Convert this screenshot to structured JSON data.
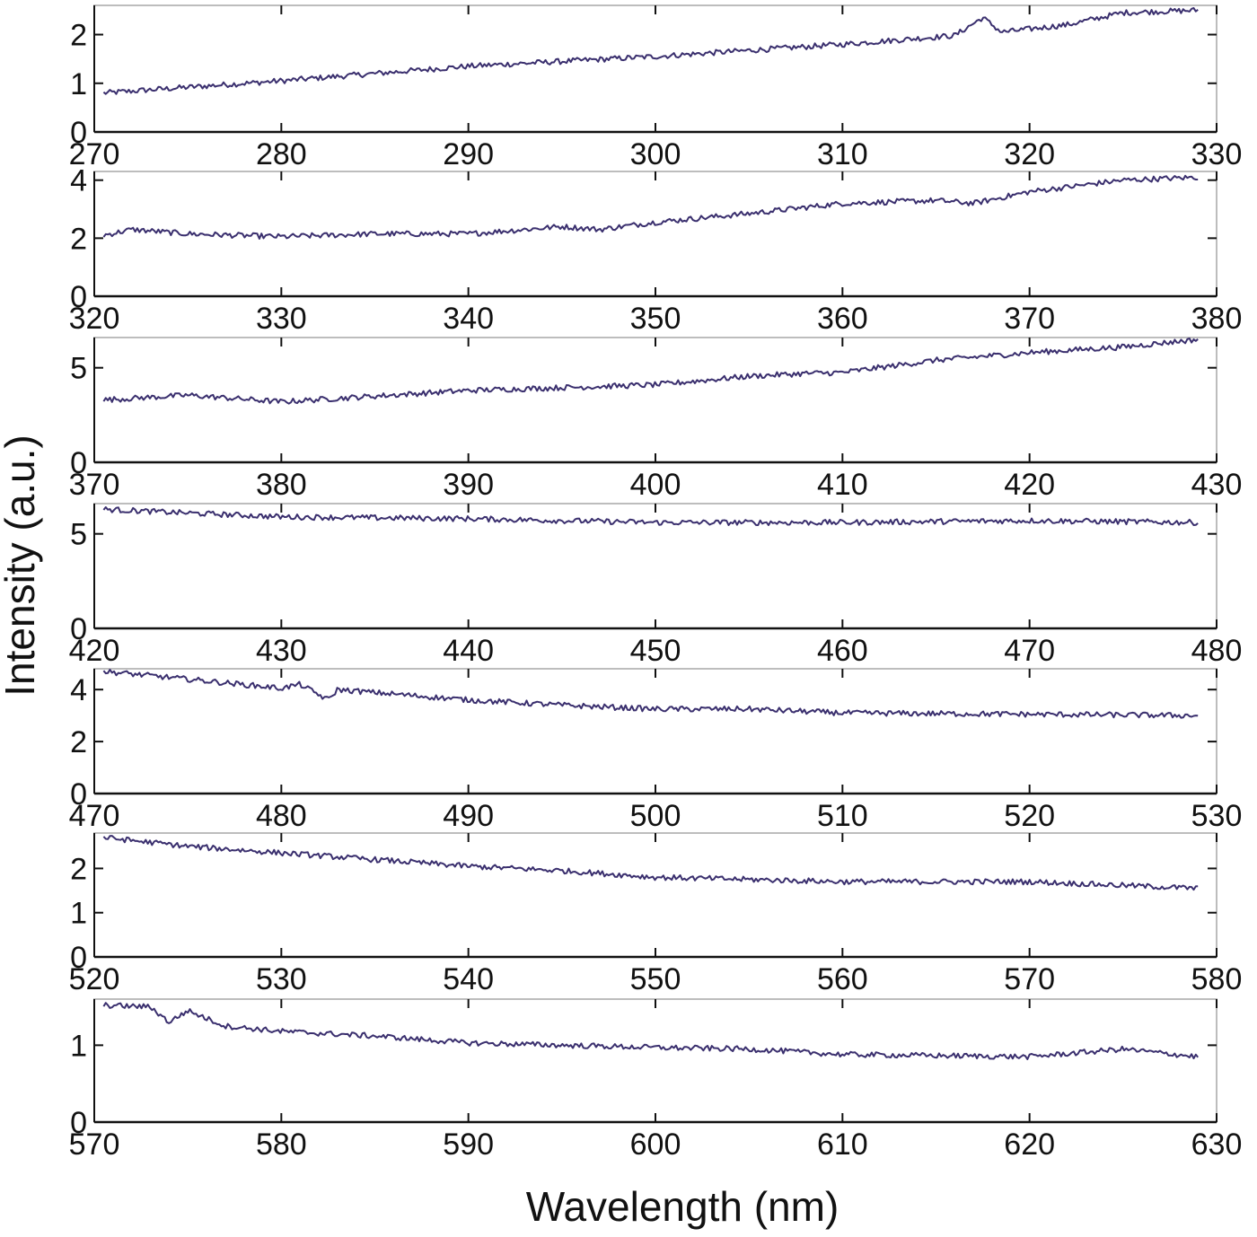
{
  "chart_data": {
    "type": "line",
    "xlabel": "Wavelength (nm)",
    "ylabel": "Intensity (a.u.)",
    "line_color": "#3a2f6e",
    "grid": false,
    "panels": [
      {
        "x_range": [
          270,
          330
        ],
        "x_ticks": [
          270,
          280,
          290,
          300,
          310,
          320,
          330
        ],
        "y_range": [
          0,
          2.6
        ],
        "y_ticks": [
          0,
          1,
          2
        ],
        "x_start": 270.5,
        "x_end": 329,
        "series": [
          {
            "x": 270.5,
            "y": 0.8
          },
          {
            "x": 280,
            "y": 1.05
          },
          {
            "x": 290,
            "y": 1.35
          },
          {
            "x": 300,
            "y": 1.55
          },
          {
            "x": 310,
            "y": 1.8
          },
          {
            "x": 316,
            "y": 1.98
          },
          {
            "x": 317.5,
            "y": 2.35
          },
          {
            "x": 318.5,
            "y": 2.05
          },
          {
            "x": 322,
            "y": 2.2
          },
          {
            "x": 325,
            "y": 2.45
          },
          {
            "x": 329,
            "y": 2.5
          }
        ]
      },
      {
        "x_range": [
          320,
          380
        ],
        "x_ticks": [
          320,
          330,
          340,
          350,
          360,
          370,
          380
        ],
        "y_range": [
          0,
          4.3
        ],
        "y_ticks": [
          0,
          2,
          4
        ],
        "x_start": 320.5,
        "x_end": 379,
        "series": [
          {
            "x": 320.5,
            "y": 2.1
          },
          {
            "x": 322,
            "y": 2.3
          },
          {
            "x": 325,
            "y": 2.15
          },
          {
            "x": 330,
            "y": 2.05
          },
          {
            "x": 335,
            "y": 2.15
          },
          {
            "x": 340,
            "y": 2.15
          },
          {
            "x": 345,
            "y": 2.4
          },
          {
            "x": 347,
            "y": 2.3
          },
          {
            "x": 350,
            "y": 2.55
          },
          {
            "x": 355,
            "y": 2.85
          },
          {
            "x": 360,
            "y": 3.2
          },
          {
            "x": 365,
            "y": 3.3
          },
          {
            "x": 367,
            "y": 3.2
          },
          {
            "x": 370,
            "y": 3.6
          },
          {
            "x": 375,
            "y": 4.0
          },
          {
            "x": 379,
            "y": 4.1
          }
        ]
      },
      {
        "x_range": [
          370,
          430
        ],
        "x_ticks": [
          370,
          380,
          390,
          400,
          410,
          420,
          430
        ],
        "y_range": [
          0,
          6.6
        ],
        "y_ticks": [
          0,
          5
        ],
        "x_start": 370.5,
        "x_end": 429,
        "series": [
          {
            "x": 370.5,
            "y": 3.3
          },
          {
            "x": 375,
            "y": 3.55
          },
          {
            "x": 380,
            "y": 3.2
          },
          {
            "x": 385,
            "y": 3.5
          },
          {
            "x": 390,
            "y": 3.8
          },
          {
            "x": 395,
            "y": 3.95
          },
          {
            "x": 400,
            "y": 4.1
          },
          {
            "x": 405,
            "y": 4.55
          },
          {
            "x": 408,
            "y": 4.7
          },
          {
            "x": 410,
            "y": 4.75
          },
          {
            "x": 415,
            "y": 5.4
          },
          {
            "x": 420,
            "y": 5.8
          },
          {
            "x": 425,
            "y": 6.1
          },
          {
            "x": 429,
            "y": 6.5
          }
        ]
      },
      {
        "x_range": [
          420,
          480
        ],
        "x_ticks": [
          420,
          430,
          440,
          450,
          460,
          470,
          480
        ],
        "y_range": [
          0,
          6.6
        ],
        "y_ticks": [
          0,
          5
        ],
        "x_start": 420.5,
        "x_end": 479,
        "series": [
          {
            "x": 420.5,
            "y": 6.3
          },
          {
            "x": 425,
            "y": 6.1
          },
          {
            "x": 430,
            "y": 5.9
          },
          {
            "x": 440,
            "y": 5.8
          },
          {
            "x": 450,
            "y": 5.6
          },
          {
            "x": 460,
            "y": 5.6
          },
          {
            "x": 470,
            "y": 5.7
          },
          {
            "x": 479,
            "y": 5.6
          }
        ]
      },
      {
        "x_range": [
          470,
          530
        ],
        "x_ticks": [
          470,
          480,
          490,
          500,
          510,
          520,
          530
        ],
        "y_range": [
          0,
          4.8
        ],
        "y_ticks": [
          0,
          2,
          4
        ],
        "x_start": 470.5,
        "x_end": 529,
        "series": [
          {
            "x": 470.5,
            "y": 4.7
          },
          {
            "x": 475,
            "y": 4.4
          },
          {
            "x": 480,
            "y": 4.05
          },
          {
            "x": 481,
            "y": 4.2
          },
          {
            "x": 482.5,
            "y": 3.6
          },
          {
            "x": 483,
            "y": 4.0
          },
          {
            "x": 490,
            "y": 3.6
          },
          {
            "x": 495,
            "y": 3.4
          },
          {
            "x": 500,
            "y": 3.25
          },
          {
            "x": 505,
            "y": 3.25
          },
          {
            "x": 510,
            "y": 3.1
          },
          {
            "x": 520,
            "y": 3.05
          },
          {
            "x": 529,
            "y": 3.0
          }
        ]
      },
      {
        "x_range": [
          520,
          580
        ],
        "x_ticks": [
          520,
          530,
          540,
          550,
          560,
          570,
          580
        ],
        "y_range": [
          0,
          2.8
        ],
        "y_ticks": [
          0,
          1,
          2
        ],
        "x_start": 520.5,
        "x_end": 579,
        "series": [
          {
            "x": 520.5,
            "y": 2.7
          },
          {
            "x": 525,
            "y": 2.5
          },
          {
            "x": 530,
            "y": 2.35
          },
          {
            "x": 535,
            "y": 2.2
          },
          {
            "x": 540,
            "y": 2.05
          },
          {
            "x": 545,
            "y": 1.95
          },
          {
            "x": 550,
            "y": 1.8
          },
          {
            "x": 555,
            "y": 1.75
          },
          {
            "x": 560,
            "y": 1.7
          },
          {
            "x": 570,
            "y": 1.7
          },
          {
            "x": 579,
            "y": 1.55
          }
        ]
      },
      {
        "x_range": [
          570,
          630
        ],
        "x_ticks": [
          570,
          580,
          590,
          600,
          610,
          620,
          630
        ],
        "y_range": [
          0,
          1.6
        ],
        "y_ticks": [
          0,
          1
        ],
        "x_start": 570.5,
        "x_end": 629,
        "series": [
          {
            "x": 570.5,
            "y": 1.52
          },
          {
            "x": 573,
            "y": 1.5
          },
          {
            "x": 574,
            "y": 1.3
          },
          {
            "x": 575,
            "y": 1.45
          },
          {
            "x": 577,
            "y": 1.25
          },
          {
            "x": 580,
            "y": 1.18
          },
          {
            "x": 585,
            "y": 1.12
          },
          {
            "x": 590,
            "y": 1.03
          },
          {
            "x": 595,
            "y": 1.0
          },
          {
            "x": 600,
            "y": 0.97
          },
          {
            "x": 605,
            "y": 0.95
          },
          {
            "x": 610,
            "y": 0.88
          },
          {
            "x": 620,
            "y": 0.85
          },
          {
            "x": 625,
            "y": 0.95
          },
          {
            "x": 629,
            "y": 0.85
          }
        ]
      }
    ]
  }
}
